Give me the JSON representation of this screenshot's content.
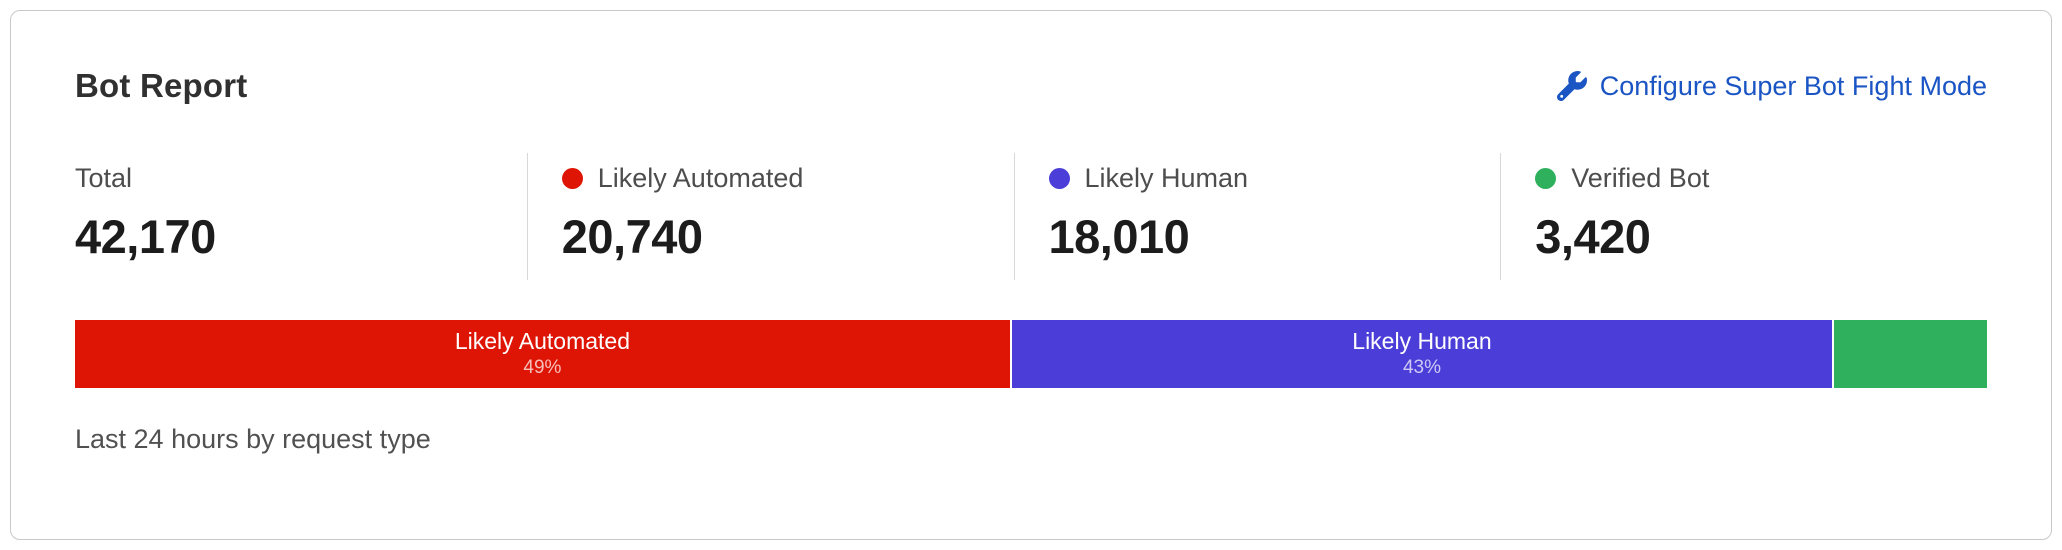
{
  "card": {
    "title": "Bot Report",
    "action_link": {
      "label": "Configure Super Bot Fight Mode",
      "icon": "wrench-icon",
      "color": "#1b55c4"
    },
    "stats": [
      {
        "label": "Total",
        "value": "42,170"
      },
      {
        "label": "Likely Automated",
        "value": "20,740",
        "dot_color": "#de1505"
      },
      {
        "label": "Likely Human",
        "value": "18,010",
        "dot_color": "#4b3dd8"
      },
      {
        "label": "Verified Bot",
        "value": "3,420",
        "dot_color": "#2fb05c"
      }
    ],
    "footer": "Last 24 hours by request type"
  },
  "chart_data": {
    "type": "bar",
    "variant": "stacked-horizontal-single-row",
    "title": "Bot Report",
    "caption": "Last 24 hours by request type",
    "unit": "requests",
    "total": 42170,
    "legend_position": "top",
    "segments": [
      {
        "name": "Likely Automated",
        "value": 20740,
        "percent": 49,
        "color": "#de1505",
        "bar_label": "Likely Automated",
        "bar_percent_label": "49%"
      },
      {
        "name": "Likely Human",
        "value": 18010,
        "percent": 43,
        "color": "#4b3dd8",
        "bar_label": "Likely Human",
        "bar_percent_label": "43%"
      },
      {
        "name": "Verified Bot",
        "value": 3420,
        "percent": 8,
        "color": "#2fb05c",
        "bar_label": "",
        "bar_percent_label": ""
      }
    ]
  }
}
